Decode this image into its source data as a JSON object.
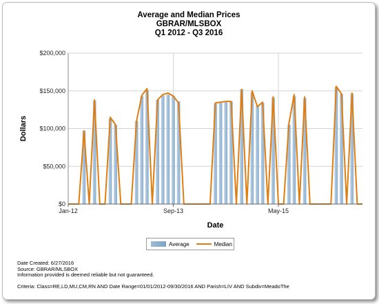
{
  "chart_data": {
    "type": "bar",
    "title": "Average and Median Prices",
    "subtitle_lines": [
      "GBRAR/MLSBOX",
      "Q1 2012 - Q3 2016"
    ],
    "xlabel": "Date",
    "ylabel": "Dollars",
    "ylim": [
      0,
      200000
    ],
    "y_ticks": [
      "$0",
      "$50,000",
      "$100,000",
      "$150,000",
      "$200,000"
    ],
    "x_range": [
      "2012-01",
      "2016-09"
    ],
    "x_ticks": [
      {
        "label": "Jan-12",
        "month": "2012-01"
      },
      {
        "label": "Sep-13",
        "month": "2013-09"
      },
      {
        "label": "May-15",
        "month": "2015-05"
      }
    ],
    "grid": true,
    "legend": "bottom-center",
    "colors": {
      "average": "#8fb0cf",
      "median": "#e07d10"
    },
    "series": [
      {
        "name": "Average",
        "type": "bar",
        "values": [
          0,
          0,
          0,
          97000,
          0,
          137000,
          0,
          0,
          113000,
          105000,
          0,
          0,
          0,
          110000,
          143000,
          151000,
          0,
          138000,
          144000,
          145000,
          143000,
          136000,
          0,
          0,
          0,
          0,
          0,
          0,
          133000,
          134000,
          135000,
          136000,
          0,
          152000,
          0,
          148000,
          130000,
          134000,
          0,
          141000,
          0,
          0,
          105000,
          143000,
          0,
          140000,
          0,
          0,
          0,
          0,
          0,
          155000,
          146000,
          0,
          146000,
          0,
          0
        ]
      },
      {
        "name": "Median",
        "type": "line",
        "values": [
          0,
          0,
          0,
          97000,
          0,
          138000,
          0,
          0,
          115000,
          105000,
          0,
          0,
          0,
          110000,
          144000,
          153000,
          0,
          138000,
          145000,
          147000,
          143000,
          134000,
          0,
          0,
          0,
          0,
          0,
          0,
          134000,
          135000,
          136000,
          136000,
          0,
          152000,
          0,
          150000,
          129000,
          135000,
          0,
          142000,
          0,
          0,
          107000,
          145000,
          0,
          142000,
          0,
          0,
          0,
          0,
          0,
          156000,
          146000,
          0,
          147000,
          0,
          0
        ]
      }
    ]
  },
  "footer": {
    "created": "Date Created: 6/27/2016",
    "source": "Source: GBRAR/MLSBOX",
    "disclaimer": "Information provided is deemed reliable but not guaranteed.",
    "criteria": "Criteria: Class=RE,LD,MU,CM,RN AND Date Range=01/01/2012-09/30/2016 AND Parish=LIV AND Subdiv=MeadoThe"
  }
}
